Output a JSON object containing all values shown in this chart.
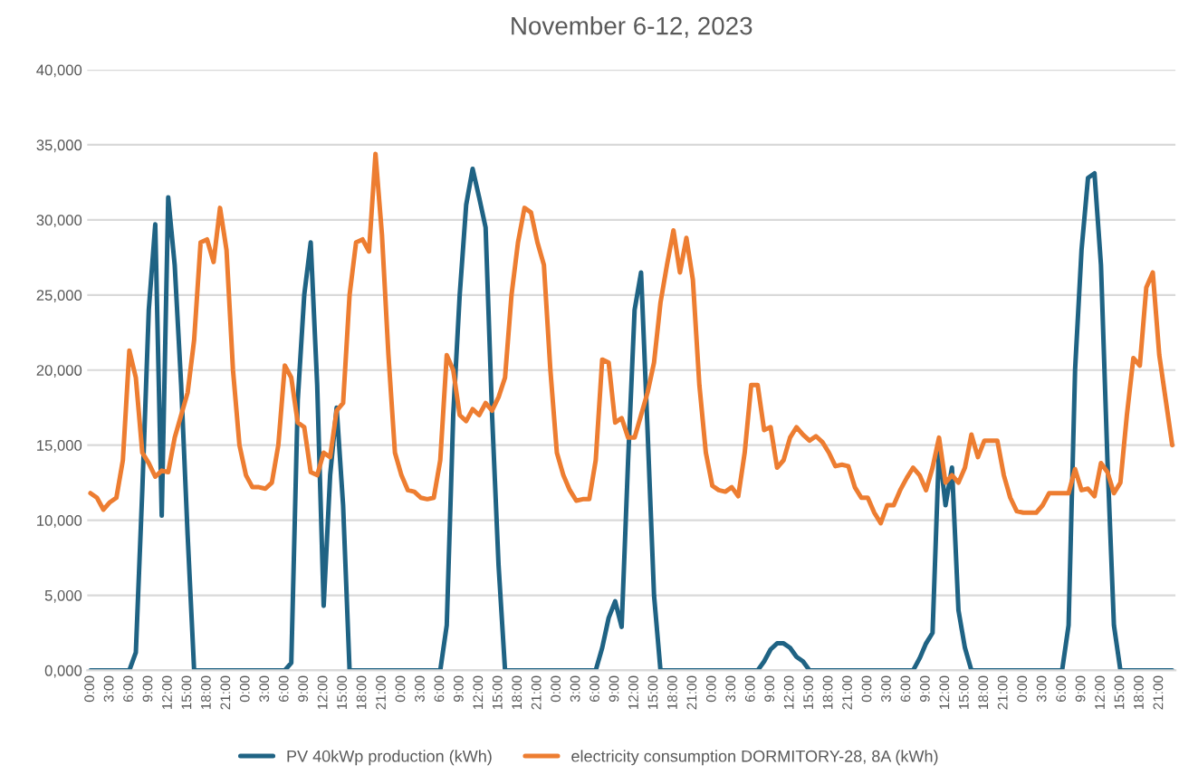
{
  "chart_data": {
    "type": "line",
    "title": "November 6-12, 2023",
    "categories": [
      "0:00",
      null,
      null,
      "3:00",
      null,
      null,
      "6:00",
      null,
      null,
      "9:00",
      null,
      null,
      "12:00",
      null,
      null,
      "15:00",
      null,
      null,
      "18:00",
      null,
      null,
      "21:00",
      null,
      null,
      "0:00",
      null,
      null,
      "3:00",
      null,
      null,
      "6:00",
      null,
      null,
      "9:00",
      null,
      null,
      "12:00",
      null,
      null,
      "15:00",
      null,
      null,
      "18:00",
      null,
      null,
      "21:00",
      null,
      null,
      "0:00",
      null,
      null,
      "3:00",
      null,
      null,
      "6:00",
      null,
      null,
      "9:00",
      null,
      null,
      "12:00",
      null,
      null,
      "15:00",
      null,
      null,
      "18:00",
      null,
      null,
      "21:00",
      null,
      null,
      "0:00",
      null,
      null,
      "3:00",
      null,
      null,
      "6:00",
      null,
      null,
      "9:00",
      null,
      null,
      "12:00",
      null,
      null,
      "15:00",
      null,
      null,
      "18:00",
      null,
      null,
      "21:00",
      null,
      null,
      "0:00",
      null,
      null,
      "3:00",
      null,
      null,
      "6:00",
      null,
      null,
      "9:00",
      null,
      null,
      "12:00",
      null,
      null,
      "15:00",
      null,
      null,
      "18:00",
      null,
      null,
      "21:00",
      null,
      null,
      "0:00",
      null,
      null,
      "3:00",
      null,
      null,
      "6:00",
      null,
      null,
      "9:00",
      null,
      null,
      "12:00",
      null,
      null,
      "15:00",
      null,
      null,
      "18:00",
      null,
      null,
      "21:00",
      null,
      null,
      "0:00",
      null,
      null,
      "3:00",
      null,
      null,
      "6:00",
      null,
      null,
      "9:00",
      null,
      null,
      "12:00",
      null,
      null,
      "15:00",
      null,
      null,
      "18:00",
      null,
      null,
      "21:00",
      null,
      null
    ],
    "series": [
      {
        "name": "PV 40kWp production (kWh)",
        "color": "#1f6384",
        "values": [
          0,
          0,
          0,
          0,
          0,
          0,
          0,
          1200,
          12000,
          24000,
          29700,
          10300,
          31500,
          27000,
          19000,
          9000,
          0,
          0,
          0,
          0,
          0,
          0,
          0,
          0,
          0,
          0,
          0,
          0,
          0,
          0,
          0,
          500,
          18000,
          25000,
          28500,
          19000,
          4300,
          13000,
          17500,
          11000,
          0,
          0,
          0,
          0,
          0,
          0,
          0,
          0,
          0,
          0,
          0,
          0,
          0,
          0,
          0,
          3000,
          17000,
          25000,
          31000,
          33400,
          31500,
          29500,
          17000,
          7000,
          0,
          0,
          0,
          0,
          0,
          0,
          0,
          0,
          0,
          0,
          0,
          0,
          0,
          0,
          0,
          1500,
          3500,
          4600,
          2900,
          14000,
          24000,
          26500,
          16000,
          5000,
          0,
          0,
          0,
          0,
          0,
          0,
          0,
          0,
          0,
          0,
          0,
          0,
          0,
          0,
          0,
          0,
          600,
          1400,
          1800,
          1800,
          1500,
          900,
          600,
          0,
          0,
          0,
          0,
          0,
          0,
          0,
          0,
          0,
          0,
          0,
          0,
          0,
          0,
          0,
          0,
          0,
          800,
          1800,
          2500,
          14800,
          11000,
          13500,
          4000,
          1500,
          0,
          0,
          0,
          0,
          0,
          0,
          0,
          0,
          0,
          0,
          0,
          0,
          0,
          0,
          0,
          3000,
          20000,
          28000,
          32800,
          33100,
          27000,
          14000,
          3000,
          0,
          0,
          0,
          0,
          0,
          0,
          0,
          0,
          0
        ]
      },
      {
        "name": "electricity consumption DORMITORY-28, 8A (kWh)",
        "color": "#ed7d31",
        "values": [
          11800,
          11500,
          10700,
          11200,
          11500,
          14000,
          21300,
          19500,
          14500,
          13800,
          12900,
          13300,
          13200,
          15500,
          17000,
          18500,
          22000,
          28500,
          28700,
          27200,
          30800,
          28000,
          20000,
          15000,
          13000,
          12200,
          12200,
          12100,
          12500,
          15000,
          20300,
          19500,
          16500,
          16200,
          13200,
          13000,
          14500,
          14200,
          17300,
          17800,
          25000,
          28500,
          28700,
          27900,
          34400,
          29000,
          21000,
          14500,
          13000,
          12000,
          11900,
          11500,
          11400,
          11500,
          14000,
          21000,
          20000,
          17000,
          16600,
          17400,
          17000,
          17800,
          17300,
          18200,
          19500,
          25000,
          28500,
          30800,
          30500,
          28500,
          27000,
          20000,
          14500,
          13000,
          12000,
          11300,
          11400,
          11400,
          14000,
          20700,
          20500,
          16500,
          16800,
          15500,
          15500,
          17000,
          18500,
          20500,
          24500,
          27000,
          29300,
          26500,
          28800,
          26000,
          19000,
          14500,
          12300,
          12000,
          11900,
          12200,
          11600,
          14500,
          19000,
          19000,
          16000,
          16200,
          13500,
          14000,
          15500,
          16200,
          15700,
          15300,
          15600,
          15200,
          14500,
          13600,
          13700,
          13600,
          12200,
          11500,
          11500,
          10500,
          9800,
          11000,
          11000,
          12000,
          12800,
          13500,
          13000,
          12000,
          13500,
          15500,
          12500,
          13000,
          12500,
          13500,
          15700,
          14200,
          15300,
          15300,
          15300,
          13000,
          11500,
          10600,
          10500,
          10500,
          10500,
          11000,
          11800,
          11800,
          11800,
          11800,
          13400,
          12000,
          12100,
          11600,
          13800,
          13200,
          11800,
          12500,
          17000,
          20800,
          20300,
          25500,
          26500,
          21000,
          18000,
          15000
        ]
      }
    ],
    "ylim": [
      0,
      40000
    ],
    "yticks": [
      {
        "value": 0,
        "label": "0,000"
      },
      {
        "value": 5000,
        "label": "5,000"
      },
      {
        "value": 10000,
        "label": "10,000"
      },
      {
        "value": 15000,
        "label": "15,000"
      },
      {
        "value": 20000,
        "label": "20,000"
      },
      {
        "value": 25000,
        "label": "25,000"
      },
      {
        "value": 30000,
        "label": "30,000"
      },
      {
        "value": 35000,
        "label": "35,000"
      },
      {
        "value": 40000,
        "label": "40,000"
      }
    ],
    "grid": "y",
    "legend": "bottom",
    "line_style": "solid",
    "marker": "none"
  }
}
